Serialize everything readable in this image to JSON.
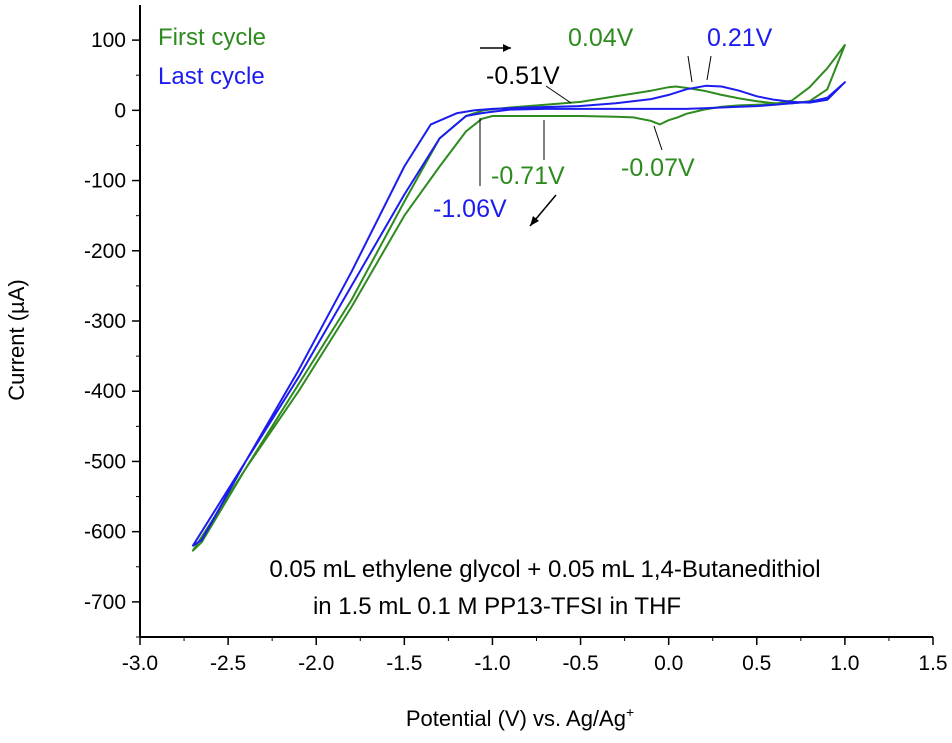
{
  "colors": {
    "first_cycle": "#2e8b1f",
    "last_cycle": "#1c1cf0",
    "axis": "#000000",
    "marker": "#000000"
  },
  "chart_data": {
    "type": "line",
    "title": "",
    "xlabel": "Potential (V) vs. Ag/Ag",
    "xlabel_sup": "+",
    "ylabel": "Current (µA)",
    "xlim": [
      -3.0,
      1.5
    ],
    "ylim": [
      -750,
      150
    ],
    "x_ticks": [
      -3.0,
      -2.5,
      -2.0,
      -1.5,
      -1.0,
      -0.5,
      0.0,
      0.5,
      1.0,
      1.5
    ],
    "x_tick_labels": [
      "-3.0",
      "-2.5",
      "-2.0",
      "-1.5",
      "-1.0",
      "-0.5",
      "0.0",
      "0.5",
      "1.0",
      "1.5"
    ],
    "y_ticks": [
      100,
      0,
      -100,
      -200,
      -300,
      -400,
      -500,
      -600,
      -700
    ],
    "y_tick_labels": [
      "100",
      "0",
      "-100",
      "-200",
      "-300",
      "-400",
      "-500",
      "-600",
      "-700"
    ],
    "grid": false,
    "legend_position": "top-left",
    "series": [
      {
        "name": "First cycle",
        "color": "#2e8b1f",
        "x": [
          1.0,
          0.9,
          0.8,
          0.7,
          0.6,
          0.5,
          0.4,
          0.3,
          0.2,
          0.1,
          0.05,
          0.0,
          -0.05,
          -0.1,
          -0.2,
          -0.3,
          -0.5,
          -0.7,
          -0.9,
          -1.0,
          -1.06,
          -1.15,
          -1.3,
          -1.5,
          -1.8,
          -2.1,
          -2.4,
          -2.7,
          -2.65,
          -2.4,
          -2.1,
          -1.8,
          -1.5,
          -1.3,
          -1.15,
          -1.05,
          -0.9,
          -0.7,
          -0.5,
          -0.3,
          -0.1,
          0.0,
          0.04,
          0.1,
          0.2,
          0.3,
          0.4,
          0.5,
          0.6,
          0.7,
          0.8,
          0.9,
          1.0
        ],
        "y": [
          93,
          60,
          33,
          14,
          9,
          8,
          7,
          5,
          1,
          -5,
          -10,
          -14,
          -20,
          -15,
          -10,
          -9,
          -8,
          -8,
          -8,
          -8,
          -12,
          -30,
          -80,
          -150,
          -280,
          -400,
          -510,
          -627,
          -615,
          -510,
          -390,
          -270,
          -130,
          -40,
          -8,
          0,
          4,
          8,
          12,
          20,
          28,
          33,
          34,
          32,
          28,
          22,
          17,
          13,
          10,
          10,
          13,
          30,
          93
        ]
      },
      {
        "name": "Last cycle",
        "color": "#1c1cf0",
        "x": [
          1.0,
          0.9,
          0.8,
          0.7,
          0.6,
          0.5,
          0.4,
          0.3,
          0.2,
          0.1,
          0.0,
          -0.1,
          -0.3,
          -0.5,
          -0.7,
          -0.9,
          -1.0,
          -1.06,
          -1.15,
          -1.3,
          -1.5,
          -1.8,
          -2.1,
          -2.4,
          -2.7,
          -2.65,
          -2.4,
          -2.1,
          -1.8,
          -1.5,
          -1.35,
          -1.2,
          -1.1,
          -1.0,
          -0.8,
          -0.51,
          -0.3,
          -0.1,
          0.0,
          0.1,
          0.21,
          0.3,
          0.4,
          0.5,
          0.6,
          0.7,
          0.8,
          0.9,
          1.0
        ],
        "y": [
          40,
          18,
          12,
          10,
          8,
          6,
          5,
          4,
          3,
          2,
          2,
          2,
          2,
          2,
          2,
          1,
          -2,
          -4,
          -8,
          -40,
          -120,
          -250,
          -380,
          -500,
          -620,
          -612,
          -500,
          -370,
          -230,
          -80,
          -20,
          -4,
          0,
          2,
          4,
          6,
          10,
          16,
          22,
          30,
          35,
          34,
          28,
          20,
          15,
          12,
          11,
          15,
          40
        ]
      }
    ],
    "annotations": [
      {
        "text": "0.04V",
        "color": "#2e8b1f",
        "x": 0.04,
        "y": 34
      },
      {
        "text": "0.21V",
        "color": "#1c1cf0",
        "x": 0.21,
        "y": 35
      },
      {
        "text": "-0.51V",
        "color": "#000000",
        "x": -0.51,
        "y": 6
      },
      {
        "text": "-0.71V",
        "color": "#2e8b1f",
        "x": -0.71,
        "y": -8
      },
      {
        "text": "-0.07V",
        "color": "#2e8b1f",
        "x": -0.07,
        "y": -20
      },
      {
        "text": "-1.06V",
        "color": "#1c1cf0",
        "x": -1.06,
        "y": -4
      }
    ],
    "note_lines": [
      "0.05 mL ethylene glycol + 0.05 mL 1,4-Butanedithiol",
      "in 1.5 mL 0.1 M PP13-TFSI in THF"
    ]
  }
}
